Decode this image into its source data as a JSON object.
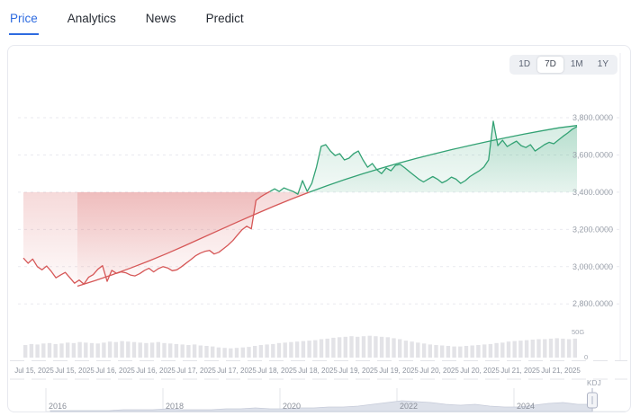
{
  "tabs": {
    "items": [
      {
        "label": "Price",
        "active": true
      },
      {
        "label": "Analytics",
        "active": false
      },
      {
        "label": "News",
        "active": false
      },
      {
        "label": "Predict",
        "active": false
      }
    ],
    "active_color": "#2e6be0"
  },
  "card": {
    "ranges": {
      "items": [
        {
          "label": "1D",
          "active": false
        },
        {
          "label": "7D",
          "active": true
        },
        {
          "label": "1M",
          "active": false
        },
        {
          "label": "1Y",
          "active": false
        }
      ]
    },
    "indicator_label": "KDJ"
  },
  "chart_data": {
    "type": "line",
    "title": "",
    "legend": [],
    "grid": true,
    "y_axis": {
      "position": "right",
      "tick_labels": [
        "3,800.0000",
        "3,600.0000",
        "3,400.0000",
        "3,200.0000",
        "3,000.0000",
        "2,800.0000"
      ],
      "tick_values": [
        3800,
        3600,
        3400,
        3200,
        3000,
        2800
      ],
      "baseline": 3400,
      "range": [
        2750,
        3850
      ]
    },
    "x_axis": {
      "tick_labels": [
        "Jul 15, 2025",
        "Jul 15, 2025",
        "Jul 16, 2025",
        "Jul 16, 2025",
        "Jul 17, 2025",
        "Jul 17, 2025",
        "Jul 18, 2025",
        "Jul 18, 2025",
        "Jul 19, 2025",
        "Jul 19, 2025",
        "Jul 20, 2025",
        "Jul 20, 2025",
        "Jul 21, 2025",
        "Jul 21, 2025"
      ]
    },
    "colors": {
      "below_line": "#d65757",
      "above_line": "#33a274",
      "volume_bar": "#e3e3e7",
      "grid_line": "#e9eaef",
      "nav_area_fill": "#dde1ea",
      "nav_area_line": "#c6cbd9"
    },
    "series": [
      {
        "name": "price",
        "type": "area-baseline",
        "baseline": 3400,
        "split_index": 53,
        "values": [
          3046,
          3018,
          3041,
          3000,
          2983,
          3003,
          2974,
          2940,
          2955,
          2969,
          2940,
          2911,
          2928,
          2906,
          2943,
          2957,
          2986,
          3005,
          2921,
          2980,
          2964,
          2972,
          2967,
          2955,
          2950,
          2962,
          2979,
          2991,
          2972,
          2989,
          3000,
          2993,
          2978,
          2983,
          3000,
          3019,
          3038,
          3058,
          3072,
          3082,
          3087,
          3068,
          3077,
          3096,
          3116,
          3140,
          3169,
          3198,
          3217,
          3203,
          3356,
          3375,
          3390,
          3404,
          3418,
          3404,
          3423,
          3413,
          3404,
          3389,
          3462,
          3404,
          3447,
          3535,
          3646,
          3655,
          3621,
          3597,
          3607,
          3573,
          3583,
          3607,
          3621,
          3573,
          3534,
          3554,
          3520,
          3500,
          3530,
          3515,
          3544,
          3549,
          3530,
          3510,
          3490,
          3470,
          3455,
          3470,
          3484,
          3470,
          3450,
          3462,
          3481,
          3470,
          3447,
          3462,
          3484,
          3500,
          3515,
          3535,
          3573,
          3781,
          3650,
          3679,
          3645,
          3660,
          3674,
          3650,
          3640,
          3655,
          3621,
          3638,
          3655,
          3668,
          3660,
          3680,
          3700,
          3718,
          3738,
          3752
        ]
      },
      {
        "name": "trend",
        "type": "line-smooth",
        "split_index": 13,
        "values": [
          2895,
          2925,
          2958,
          2993,
          3030,
          3070,
          3112,
          3155,
          3198,
          3241,
          3283,
          3324,
          3363,
          3400,
          3435,
          3468,
          3499,
          3528,
          3556,
          3582,
          3606,
          3629,
          3651,
          3672,
          3692,
          3711,
          3729,
          3746,
          3758
        ]
      },
      {
        "name": "volume",
        "type": "bar",
        "unit": "G",
        "axis_labels": [
          "50G",
          "0"
        ],
        "max": 50,
        "values": [
          26,
          28,
          27,
          29,
          30,
          28,
          29,
          31,
          30,
          32,
          31,
          30,
          29,
          31,
          33,
          32,
          34,
          33,
          32,
          31,
          30,
          31,
          32,
          30,
          29,
          28,
          27,
          26,
          27,
          25,
          24,
          23,
          21,
          20,
          19,
          20,
          21,
          22,
          24,
          26,
          27,
          28,
          30,
          31,
          32,
          33,
          34,
          35,
          36,
          38,
          39,
          41,
          42,
          43,
          44,
          43,
          44,
          45,
          44,
          43,
          42,
          40,
          38,
          35,
          33,
          31,
          29,
          27,
          26,
          25,
          24,
          23,
          23,
          24,
          25,
          26,
          27,
          28,
          30,
          31,
          33,
          34,
          35,
          36,
          37,
          38,
          38,
          39,
          40,
          39,
          38,
          39
        ]
      }
    ],
    "navigator": {
      "year_labels": [
        "2016",
        "2018",
        "2020",
        "2022",
        "2024"
      ],
      "indicator": "KDJ",
      "values": [
        1,
        1,
        1,
        1,
        1,
        2,
        2,
        2,
        3,
        2,
        2,
        2,
        3,
        3,
        4,
        3,
        3,
        4,
        4,
        5,
        5,
        6,
        8,
        10,
        12,
        11,
        10,
        8,
        7,
        8,
        6,
        5,
        5,
        7,
        9,
        10,
        8,
        8
      ]
    }
  }
}
